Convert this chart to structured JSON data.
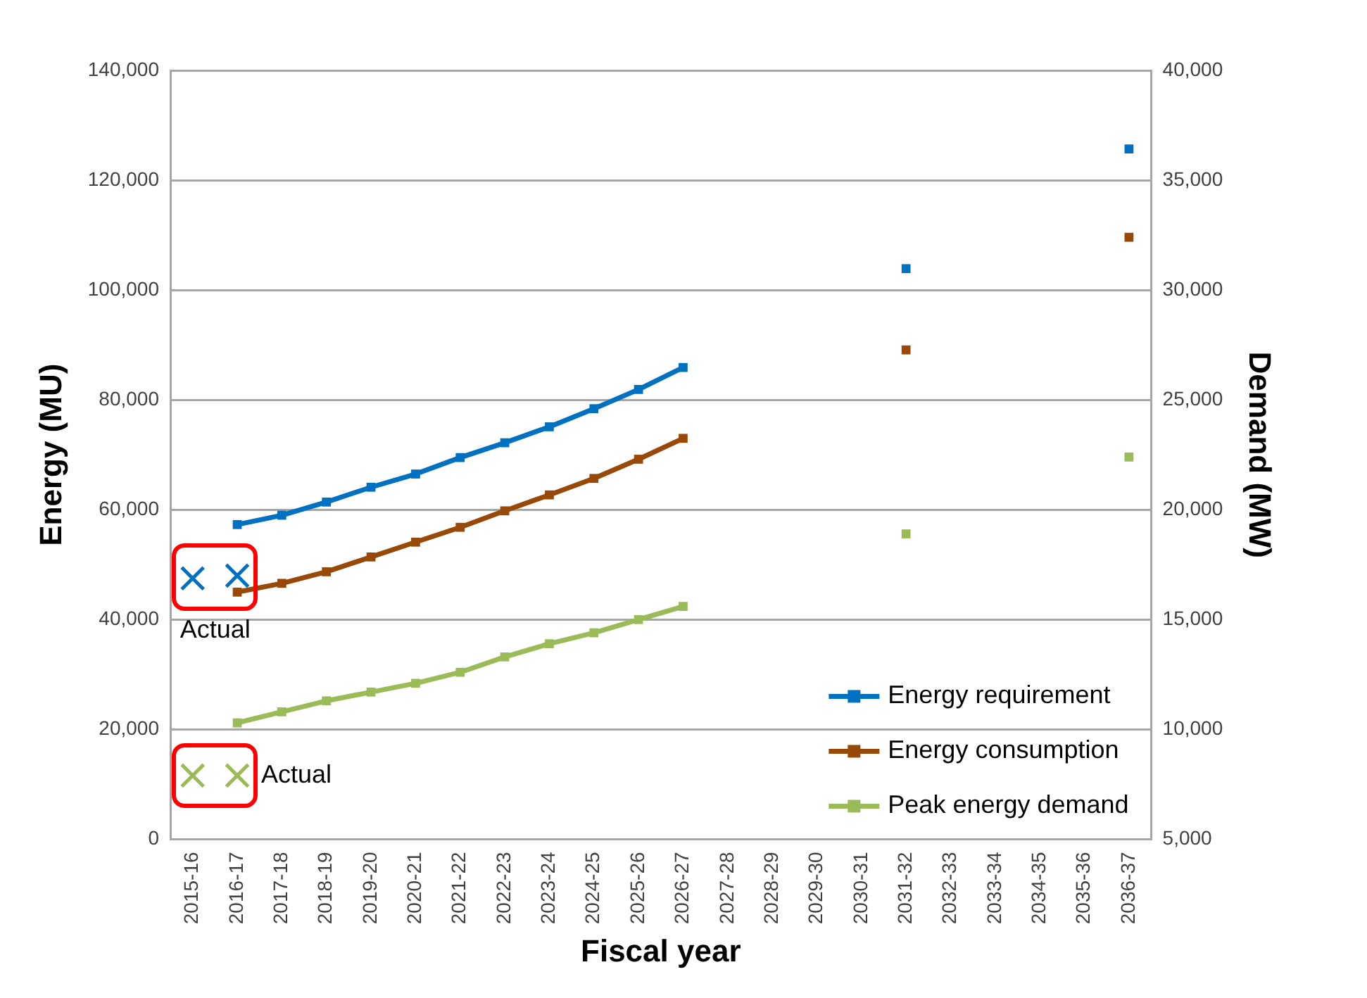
{
  "chart_data": {
    "type": "line",
    "xlabel": "Fiscal year",
    "ylabel": "Energy (MU)",
    "y2label": "Demand (MW)",
    "categories": [
      "2015-16",
      "2016-17",
      "2017-18",
      "2018-19",
      "2019-20",
      "2020-21",
      "2021-22",
      "2022-23",
      "2023-24",
      "2024-25",
      "2025-26",
      "2026-27",
      "2027-28",
      "2028-29",
      "2029-30",
      "2030-31",
      "2031-32",
      "2032-33",
      "2033-34",
      "2034-35",
      "2035-36",
      "2036-37"
    ],
    "series": [
      {
        "name": "Energy requirement",
        "color": "#0070c0",
        "marker": "square",
        "values": [
          null,
          57300,
          59000,
          61400,
          64100,
          66500,
          69500,
          72200,
          75100,
          78400,
          81900,
          85900,
          null,
          null,
          null,
          null,
          103900,
          null,
          null,
          null,
          null,
          125700
        ]
      },
      {
        "name": "Energy consumption",
        "color": "#984807",
        "marker": "square",
        "values": [
          null,
          45000,
          46600,
          48700,
          51400,
          54100,
          56800,
          59800,
          62700,
          65700,
          69200,
          73000,
          null,
          null,
          null,
          null,
          89100,
          null,
          null,
          null,
          null,
          109600
        ]
      },
      {
        "name": "Peak energy demand",
        "color": "#9bbb59",
        "marker": "square",
        "axis": "y2",
        "values": [
          null,
          10300,
          10800,
          11300,
          11700,
          12100,
          12600,
          13300,
          13900,
          14400,
          15000,
          15600,
          null,
          null,
          null,
          null,
          18900,
          null,
          null,
          null,
          null,
          22400
        ]
      },
      {
        "type": "scatter",
        "color": "#0070c0",
        "marker": "cross",
        "x": [
          "2015-16",
          "2016-17"
        ],
        "values": [
          47500,
          48000
        ]
      },
      {
        "type": "scatter",
        "color": "#9bbb59",
        "marker": "cross",
        "axis": "y2",
        "x": [
          "2015-16",
          "2016-17"
        ],
        "values": [
          7900,
          7900
        ]
      }
    ],
    "ylim": [
      0,
      140000
    ],
    "yticks": [
      {
        "value": 0,
        "label": "0"
      },
      {
        "value": 20000,
        "label": "20,000"
      },
      {
        "value": 40000,
        "label": "40,000"
      },
      {
        "value": 60000,
        "label": "60,000"
      },
      {
        "value": 80000,
        "label": "80,000"
      },
      {
        "value": 100000,
        "label": "100,000"
      },
      {
        "value": 120000,
        "label": "120,000"
      },
      {
        "value": 140000,
        "label": "140,000"
      }
    ],
    "y2lim": [
      5000,
      40000
    ],
    "y2ticks": [
      {
        "value": 5000,
        "label": "5,000"
      },
      {
        "value": 10000,
        "label": "10,000"
      },
      {
        "value": 15000,
        "label": "15,000"
      },
      {
        "value": 20000,
        "label": "20,000"
      },
      {
        "value": 25000,
        "label": "25,000"
      },
      {
        "value": 30000,
        "label": "30,000"
      },
      {
        "value": 35000,
        "label": "35,000"
      },
      {
        "value": 40000,
        "label": "40,000"
      }
    ],
    "annotations": [
      "Actual",
      "Actual"
    ],
    "grid": "y",
    "legend": "bottom right",
    "line_style": "solid"
  }
}
